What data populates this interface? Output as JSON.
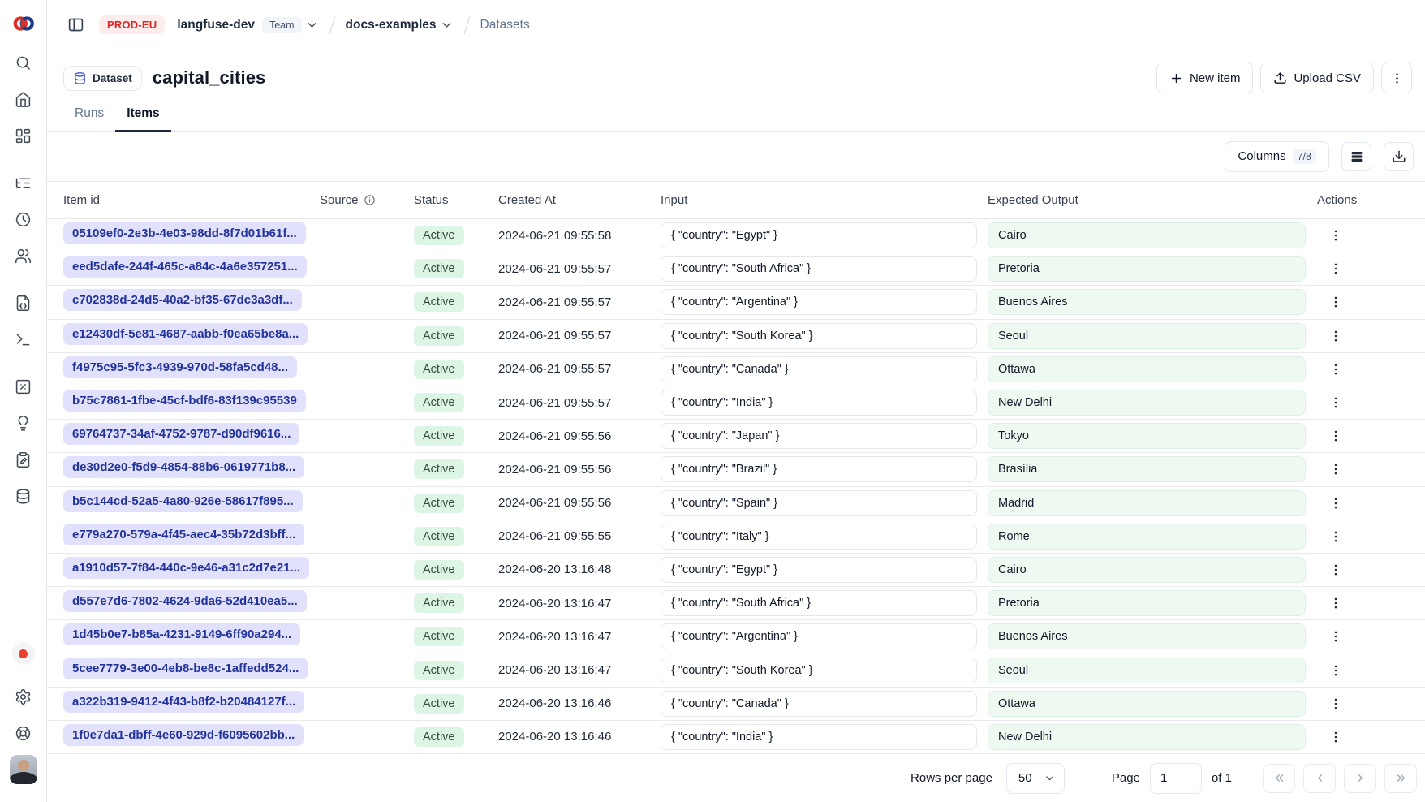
{
  "topbar": {
    "env_badge": "PROD-EU",
    "org_name": "langfuse-dev",
    "org_badge": "Team",
    "project_name": "docs-examples",
    "section": "Datasets"
  },
  "header": {
    "entity_badge": "Dataset",
    "title": "capital_cities",
    "tabs": [
      {
        "label": "Runs",
        "active": false
      },
      {
        "label": "Items",
        "active": true
      }
    ],
    "new_item_label": "New item",
    "upload_csv_label": "Upload CSV"
  },
  "toolbar": {
    "columns_label": "Columns",
    "columns_count": "7/8",
    "icons": [
      "table-rows-icon",
      "download-icon"
    ]
  },
  "sidebar": {
    "icons": [
      {
        "name": "search-icon",
        "icon": "search",
        "gap": false
      },
      {
        "name": "home-icon",
        "icon": "home",
        "gap": false
      },
      {
        "name": "dashboards-icon",
        "icon": "dashboard",
        "gap": false
      },
      {
        "name": "tracing-icon",
        "icon": "listtree",
        "gap": true
      },
      {
        "name": "sessions-icon",
        "icon": "clock",
        "gap": false
      },
      {
        "name": "users-icon",
        "icon": "users",
        "gap": false
      },
      {
        "name": "prompts-icon",
        "icon": "filecode",
        "gap": true
      },
      {
        "name": "playground-icon",
        "icon": "terminal",
        "gap": false
      },
      {
        "name": "evaluation-icon",
        "icon": "percentsquare",
        "gap": true
      },
      {
        "name": "ideas-icon",
        "icon": "lightbulb",
        "gap": false
      },
      {
        "name": "annotation-icon",
        "icon": "clipboardpen",
        "gap": false
      },
      {
        "name": "datasets-icon",
        "icon": "database",
        "gap": false
      }
    ],
    "bottom_icons": [
      {
        "name": "recording-status-icon",
        "icon": "reddot"
      },
      {
        "name": "settings-icon",
        "icon": "settings"
      },
      {
        "name": "support-icon",
        "icon": "lifebuoy"
      },
      {
        "name": "user-avatar",
        "icon": "avatar"
      }
    ]
  },
  "table": {
    "columns": {
      "item_id": "Item id",
      "source": "Source",
      "status": "Status",
      "created_at": "Created At",
      "input": "Input",
      "expected_output": "Expected Output",
      "actions": "Actions"
    },
    "rows": [
      {
        "id": "05109ef0-2e3b-4e03-98dd-8f7d01b61f...",
        "status": "Active",
        "created_at": "2024-06-21 09:55:58",
        "input": "{ \"country\": \"Egypt\" }",
        "expected_output": "Cairo"
      },
      {
        "id": "eed5dafe-244f-465c-a84c-4a6e357251...",
        "status": "Active",
        "created_at": "2024-06-21 09:55:57",
        "input": "{ \"country\": \"South Africa\" }",
        "expected_output": "Pretoria"
      },
      {
        "id": "c702838d-24d5-40a2-bf35-67dc3a3df...",
        "status": "Active",
        "created_at": "2024-06-21 09:55:57",
        "input": "{ \"country\": \"Argentina\" }",
        "expected_output": "Buenos Aires"
      },
      {
        "id": "e12430df-5e81-4687-aabb-f0ea65be8a...",
        "status": "Active",
        "created_at": "2024-06-21 09:55:57",
        "input": "{ \"country\": \"South Korea\" }",
        "expected_output": "Seoul"
      },
      {
        "id": "f4975c95-5fc3-4939-970d-58fa5cd48...",
        "status": "Active",
        "created_at": "2024-06-21 09:55:57",
        "input": "{ \"country\": \"Canada\" }",
        "expected_output": "Ottawa"
      },
      {
        "id": "b75c7861-1fbe-45cf-bdf6-83f139c95539",
        "status": "Active",
        "created_at": "2024-06-21 09:55:57",
        "input": "{ \"country\": \"India\" }",
        "expected_output": "New Delhi"
      },
      {
        "id": "69764737-34af-4752-9787-d90df9616...",
        "status": "Active",
        "created_at": "2024-06-21 09:55:56",
        "input": "{ \"country\": \"Japan\" }",
        "expected_output": "Tokyo"
      },
      {
        "id": "de30d2e0-f5d9-4854-88b6-0619771b8...",
        "status": "Active",
        "created_at": "2024-06-21 09:55:56",
        "input": "{ \"country\": \"Brazil\" }",
        "expected_output": "Brasília"
      },
      {
        "id": "b5c144cd-52a5-4a80-926e-58617f895...",
        "status": "Active",
        "created_at": "2024-06-21 09:55:56",
        "input": "{ \"country\": \"Spain\" }",
        "expected_output": "Madrid"
      },
      {
        "id": "e779a270-579a-4f45-aec4-35b72d3bff...",
        "status": "Active",
        "created_at": "2024-06-21 09:55:55",
        "input": "{ \"country\": \"Italy\" }",
        "expected_output": "Rome"
      },
      {
        "id": "a1910d57-7f84-440c-9e46-a31c2d7e21...",
        "status": "Active",
        "created_at": "2024-06-20 13:16:48",
        "input": "{ \"country\": \"Egypt\" }",
        "expected_output": "Cairo"
      },
      {
        "id": "d557e7d6-7802-4624-9da6-52d410ea5...",
        "status": "Active",
        "created_at": "2024-06-20 13:16:47",
        "input": "{ \"country\": \"South Africa\" }",
        "expected_output": "Pretoria"
      },
      {
        "id": "1d45b0e7-b85a-4231-9149-6ff90a294...",
        "status": "Active",
        "created_at": "2024-06-20 13:16:47",
        "input": "{ \"country\": \"Argentina\" }",
        "expected_output": "Buenos Aires"
      },
      {
        "id": "5cee7779-3e00-4eb8-be8c-1affedd524...",
        "status": "Active",
        "created_at": "2024-06-20 13:16:47",
        "input": "{ \"country\": \"South Korea\" }",
        "expected_output": "Seoul"
      },
      {
        "id": "a322b319-9412-4f43-b8f2-b20484127f...",
        "status": "Active",
        "created_at": "2024-06-20 13:16:46",
        "input": "{ \"country\": \"Canada\" }",
        "expected_output": "Ottawa"
      },
      {
        "id": "1f0e7da1-dbff-4e60-929d-f6095602bb...",
        "status": "Active",
        "created_at": "2024-06-20 13:16:46",
        "input": "{ \"country\": \"India\" }",
        "expected_output": "New Delhi"
      }
    ]
  },
  "footer": {
    "rows_per_page_label": "Rows per page",
    "rows_per_page_value": "50",
    "page_label": "Page",
    "page_value": "1",
    "page_total_label": "of 1",
    "pager_icons": [
      "first-page-icon",
      "previous-page-icon",
      "next-page-icon",
      "last-page-icon"
    ]
  },
  "colors": {
    "env_badge_bg": "#fdecec",
    "env_badge_text": "#dc2626",
    "id_pill_bg": "#e2e1fb",
    "id_pill_text": "#23339c",
    "status_badge_bg": "#dcf5e4",
    "expected_box_bg": "#edf9f1",
    "border": "#e5e7eb",
    "muted_text": "#64748b"
  }
}
